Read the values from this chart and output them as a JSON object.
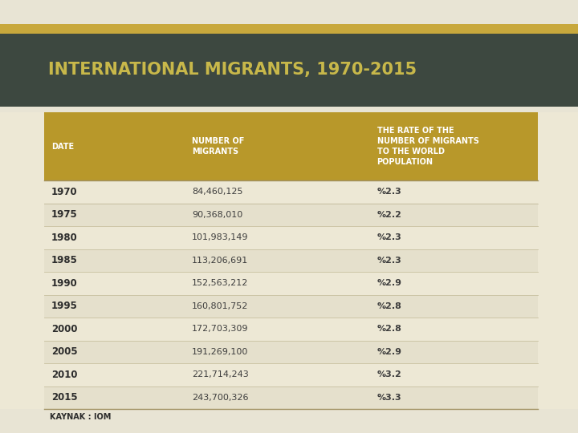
{
  "title": "INTERNATIONAL MIGRANTS, 1970-2015",
  "title_color": "#c8b84a",
  "header_bg": "#3d4840",
  "col_header_bg": "#b8982a",
  "col_header_text_color": "#ffffff",
  "row_bg": "#ede8d5",
  "row_text_date_color": "#2c2c2c",
  "row_text_data_color": "#3d3d3d",
  "background_top": "#e8e4d4",
  "background_table": "#dedad0",
  "gold_stripe_color": "#c8a83c",
  "footer_text": "KAYNAK : IOM",
  "col_headers": [
    "DATE",
    "NUMBER OF\nMIGRANTS",
    "THE RATE OF THE\nNUMBER OF MIGRANTS\nTO THE WORLD\nPOPULATION"
  ],
  "rows": [
    [
      "1970",
      "84,460,125",
      "%2.3"
    ],
    [
      "1975",
      "90,368,010",
      "%2.2"
    ],
    [
      "1980",
      "101,983,149",
      "%2.3"
    ],
    [
      "1985",
      "113,206,691",
      "%2.3"
    ],
    [
      "1990",
      "152,563,212",
      "%2.9"
    ],
    [
      "1995",
      "160,801,752",
      "%2.8"
    ],
    [
      "2000",
      "172,703,309",
      "%2.8"
    ],
    [
      "2005",
      "191,269,100",
      "%2.9"
    ],
    [
      "2010",
      "221,714,243",
      "%3.2"
    ],
    [
      "2015",
      "243,700,326",
      "%3.3"
    ]
  ],
  "fig_w": 7.2,
  "fig_h": 5.4,
  "dpi": 100
}
